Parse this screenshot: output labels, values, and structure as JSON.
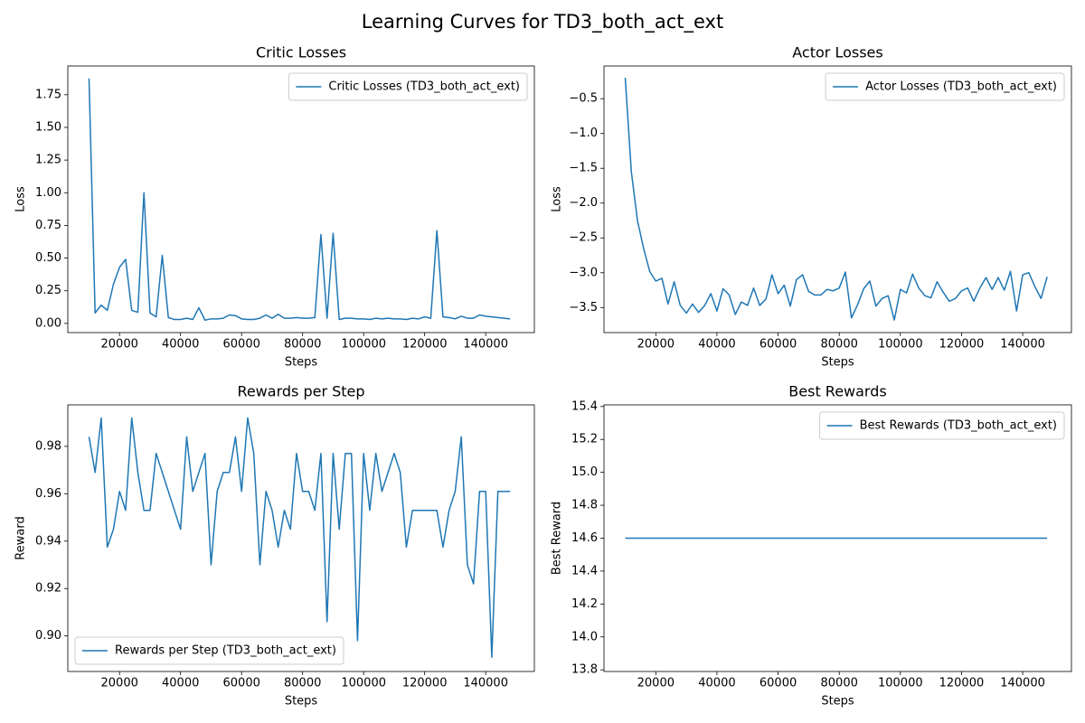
{
  "title": "Learning Curves for TD3_both_act_ext",
  "chart_data": [
    {
      "type": "line",
      "title": "Critic Losses",
      "xlabel": "Steps",
      "ylabel": "Loss",
      "x": [
        10000,
        12000,
        14000,
        16000,
        18000,
        20000,
        22000,
        24000,
        26000,
        28000,
        30000,
        32000,
        34000,
        36000,
        38000,
        40000,
        42000,
        44000,
        46000,
        48000,
        50000,
        52000,
        54000,
        56000,
        58000,
        60000,
        62000,
        64000,
        66000,
        68000,
        70000,
        72000,
        74000,
        76000,
        78000,
        80000,
        82000,
        84000,
        86000,
        88000,
        90000,
        92000,
        94000,
        96000,
        98000,
        100000,
        102000,
        104000,
        106000,
        108000,
        110000,
        112000,
        114000,
        116000,
        118000,
        120000,
        122000,
        124000,
        126000,
        128000,
        130000,
        132000,
        134000,
        136000,
        138000,
        140000,
        142000,
        144000,
        146000,
        148000
      ],
      "series": [
        {
          "name": "Critic Losses (TD3_both_act_ext)",
          "color": "#1f77b4",
          "values": [
            1.875,
            0.08,
            0.14,
            0.1,
            0.3,
            0.43,
            0.49,
            0.1,
            0.085,
            1.0,
            0.08,
            0.05,
            0.52,
            0.045,
            0.03,
            0.03,
            0.04,
            0.03,
            0.12,
            0.025,
            0.035,
            0.035,
            0.04,
            0.065,
            0.06,
            0.035,
            0.03,
            0.03,
            0.04,
            0.065,
            0.04,
            0.07,
            0.04,
            0.04,
            0.045,
            0.04,
            0.04,
            0.045,
            0.68,
            0.04,
            0.69,
            0.03,
            0.04,
            0.04,
            0.035,
            0.035,
            0.03,
            0.04,
            0.035,
            0.04,
            0.035,
            0.035,
            0.03,
            0.04,
            0.035,
            0.05,
            0.04,
            0.71,
            0.05,
            0.045,
            0.035,
            0.055,
            0.04,
            0.04,
            0.065,
            0.055,
            0.05,
            0.045,
            0.04,
            0.035
          ]
        }
      ],
      "xlim": [
        3050,
        155950
      ],
      "ylim": [
        -0.07,
        1.97
      ],
      "xticks": [
        20000,
        40000,
        60000,
        80000,
        100000,
        120000,
        140000
      ],
      "yticks": [
        {
          "value": 0,
          "label": "0.00"
        },
        {
          "value": 0.25,
          "label": "0.25"
        },
        {
          "value": 0.5,
          "label": "0.50"
        },
        {
          "value": 0.75,
          "label": "0.75"
        },
        {
          "value": 1,
          "label": "1.00"
        },
        {
          "value": 1.25,
          "label": "1.25"
        },
        {
          "value": 1.5,
          "label": "1.50"
        },
        {
          "value": 1.75,
          "label": "1.75"
        }
      ],
      "legend": "upper right"
    },
    {
      "type": "line",
      "title": "Actor Losses",
      "xlabel": "Steps",
      "ylabel": "Loss",
      "x": [
        10000,
        12000,
        14000,
        16000,
        18000,
        20000,
        22000,
        24000,
        26000,
        28000,
        30000,
        32000,
        34000,
        36000,
        38000,
        40000,
        42000,
        44000,
        46000,
        48000,
        50000,
        52000,
        54000,
        56000,
        58000,
        60000,
        62000,
        64000,
        66000,
        68000,
        70000,
        72000,
        74000,
        76000,
        78000,
        80000,
        82000,
        84000,
        86000,
        88000,
        90000,
        92000,
        94000,
        96000,
        98000,
        100000,
        102000,
        104000,
        106000,
        108000,
        110000,
        112000,
        114000,
        116000,
        118000,
        120000,
        122000,
        124000,
        126000,
        128000,
        130000,
        132000,
        134000,
        136000,
        138000,
        140000,
        142000,
        144000,
        146000,
        148000
      ],
      "series": [
        {
          "name": "Actor Losses (TD3_both_act_ext)",
          "color": "#1f77b4",
          "values": [
            -0.2,
            -1.55,
            -2.25,
            -2.65,
            -2.98,
            -3.12,
            -3.08,
            -3.45,
            -3.13,
            -3.47,
            -3.58,
            -3.45,
            -3.57,
            -3.47,
            -3.3,
            -3.55,
            -3.23,
            -3.32,
            -3.6,
            -3.42,
            -3.47,
            -3.22,
            -3.47,
            -3.38,
            -3.03,
            -3.3,
            -3.18,
            -3.48,
            -3.1,
            -3.03,
            -3.27,
            -3.32,
            -3.32,
            -3.24,
            -3.26,
            -3.22,
            -2.99,
            -3.65,
            -3.46,
            -3.23,
            -3.12,
            -3.48,
            -3.37,
            -3.33,
            -3.68,
            -3.24,
            -3.29,
            -3.02,
            -3.22,
            -3.33,
            -3.36,
            -3.13,
            -3.28,
            -3.41,
            -3.37,
            -3.26,
            -3.22,
            -3.41,
            -3.22,
            -3.07,
            -3.24,
            -3.07,
            -3.25,
            -2.98,
            -3.55,
            -3.03,
            -3.0,
            -3.2,
            -3.37,
            -3.06
          ]
        }
      ],
      "xlim": [
        3050,
        155950
      ],
      "ylim": [
        -3.86,
        -0.03
      ],
      "xticks": [
        20000,
        40000,
        60000,
        80000,
        100000,
        120000,
        140000
      ],
      "yticks": [
        {
          "value": -3.5,
          "label": "−3.5"
        },
        {
          "value": -3,
          "label": "−3.0"
        },
        {
          "value": -2.5,
          "label": "−2.5"
        },
        {
          "value": -2,
          "label": "−2.0"
        },
        {
          "value": -1.5,
          "label": "−1.5"
        },
        {
          "value": -1,
          "label": "−1.0"
        },
        {
          "value": -0.5,
          "label": "−0.5"
        }
      ],
      "legend": "upper right"
    },
    {
      "type": "line",
      "title": "Rewards per Step",
      "xlabel": "Steps",
      "ylabel": "Reward",
      "x": [
        10000,
        12000,
        14000,
        16000,
        18000,
        20000,
        22000,
        24000,
        26000,
        28000,
        30000,
        32000,
        34000,
        36000,
        38000,
        40000,
        42000,
        44000,
        46000,
        48000,
        50000,
        52000,
        54000,
        56000,
        58000,
        60000,
        62000,
        64000,
        66000,
        68000,
        70000,
        72000,
        74000,
        76000,
        78000,
        80000,
        82000,
        84000,
        86000,
        88000,
        90000,
        92000,
        94000,
        96000,
        98000,
        100000,
        102000,
        104000,
        106000,
        108000,
        110000,
        112000,
        114000,
        116000,
        118000,
        120000,
        122000,
        124000,
        126000,
        128000,
        130000,
        132000,
        134000,
        136000,
        138000,
        140000,
        142000,
        144000,
        146000,
        148000
      ],
      "series": [
        {
          "name": "Rewards per Step (TD3_both_act_ext)",
          "color": "#1f77b4",
          "values": [
            0.984,
            0.969,
            0.992,
            0.9375,
            0.945,
            0.961,
            0.953,
            0.992,
            0.969,
            0.953,
            0.953,
            0.977,
            0.969,
            0.961,
            0.953,
            0.945,
            0.984,
            0.961,
            0.969,
            0.977,
            0.93,
            0.961,
            0.969,
            0.969,
            0.984,
            0.961,
            0.992,
            0.977,
            0.93,
            0.961,
            0.953,
            0.9375,
            0.953,
            0.945,
            0.977,
            0.961,
            0.961,
            0.953,
            0.977,
            0.906,
            0.977,
            0.945,
            0.977,
            0.977,
            0.898,
            0.977,
            0.953,
            0.977,
            0.961,
            0.969,
            0.977,
            0.969,
            0.9375,
            0.953,
            0.953,
            0.953,
            0.953,
            0.953,
            0.9375,
            0.953,
            0.961,
            0.984,
            0.93,
            0.922,
            0.961,
            0.961,
            0.891,
            0.961,
            0.961,
            0.961
          ]
        }
      ],
      "xlim": [
        3050,
        155950
      ],
      "ylim": [
        0.885,
        0.9975
      ],
      "xticks": [
        20000,
        40000,
        60000,
        80000,
        100000,
        120000,
        140000
      ],
      "yticks": [
        {
          "value": 0.9,
          "label": "0.90"
        },
        {
          "value": 0.92,
          "label": "0.92"
        },
        {
          "value": 0.94,
          "label": "0.94"
        },
        {
          "value": 0.96,
          "label": "0.96"
        },
        {
          "value": 0.98,
          "label": "0.98"
        }
      ],
      "legend": "lower left"
    },
    {
      "type": "line",
      "title": "Best Rewards",
      "xlabel": "Steps",
      "ylabel": "Best Reward",
      "x": [
        10000,
        12000,
        14000,
        16000,
        18000,
        20000,
        22000,
        24000,
        26000,
        28000,
        30000,
        32000,
        34000,
        36000,
        38000,
        40000,
        42000,
        44000,
        46000,
        48000,
        50000,
        52000,
        54000,
        56000,
        58000,
        60000,
        62000,
        64000,
        66000,
        68000,
        70000,
        72000,
        74000,
        76000,
        78000,
        80000,
        82000,
        84000,
        86000,
        88000,
        90000,
        92000,
        94000,
        96000,
        98000,
        100000,
        102000,
        104000,
        106000,
        108000,
        110000,
        112000,
        114000,
        116000,
        118000,
        120000,
        122000,
        124000,
        126000,
        128000,
        130000,
        132000,
        134000,
        136000,
        138000,
        140000,
        142000,
        144000,
        146000,
        148000
      ],
      "series": [
        {
          "name": "Best Rewards (TD3_both_act_ext)",
          "color": "#1f77b4",
          "values": [
            14.6,
            14.6,
            14.6,
            14.6,
            14.6,
            14.6,
            14.6,
            14.6,
            14.6,
            14.6,
            14.6,
            14.6,
            14.6,
            14.6,
            14.6,
            14.6,
            14.6,
            14.6,
            14.6,
            14.6,
            14.6,
            14.6,
            14.6,
            14.6,
            14.6,
            14.6,
            14.6,
            14.6,
            14.6,
            14.6,
            14.6,
            14.6,
            14.6,
            14.6,
            14.6,
            14.6,
            14.6,
            14.6,
            14.6,
            14.6,
            14.6,
            14.6,
            14.6,
            14.6,
            14.6,
            14.6,
            14.6,
            14.6,
            14.6,
            14.6,
            14.6,
            14.6,
            14.6,
            14.6,
            14.6,
            14.6,
            14.6,
            14.6,
            14.6,
            14.6,
            14.6,
            14.6,
            14.6,
            14.6,
            14.6,
            14.6,
            14.6,
            14.6,
            14.6,
            14.6
          ]
        }
      ],
      "xlim": [
        3050,
        155950
      ],
      "ylim": [
        13.79,
        15.41
      ],
      "xticks": [
        20000,
        40000,
        60000,
        80000,
        100000,
        120000,
        140000
      ],
      "yticks": [
        13.8,
        {
          "value": 14,
          "label": "14.0"
        },
        14.2,
        14.4,
        14.6,
        14.8,
        {
          "value": 15,
          "label": "15.0"
        },
        15.2,
        15.4
      ],
      "legend": "upper right"
    }
  ]
}
